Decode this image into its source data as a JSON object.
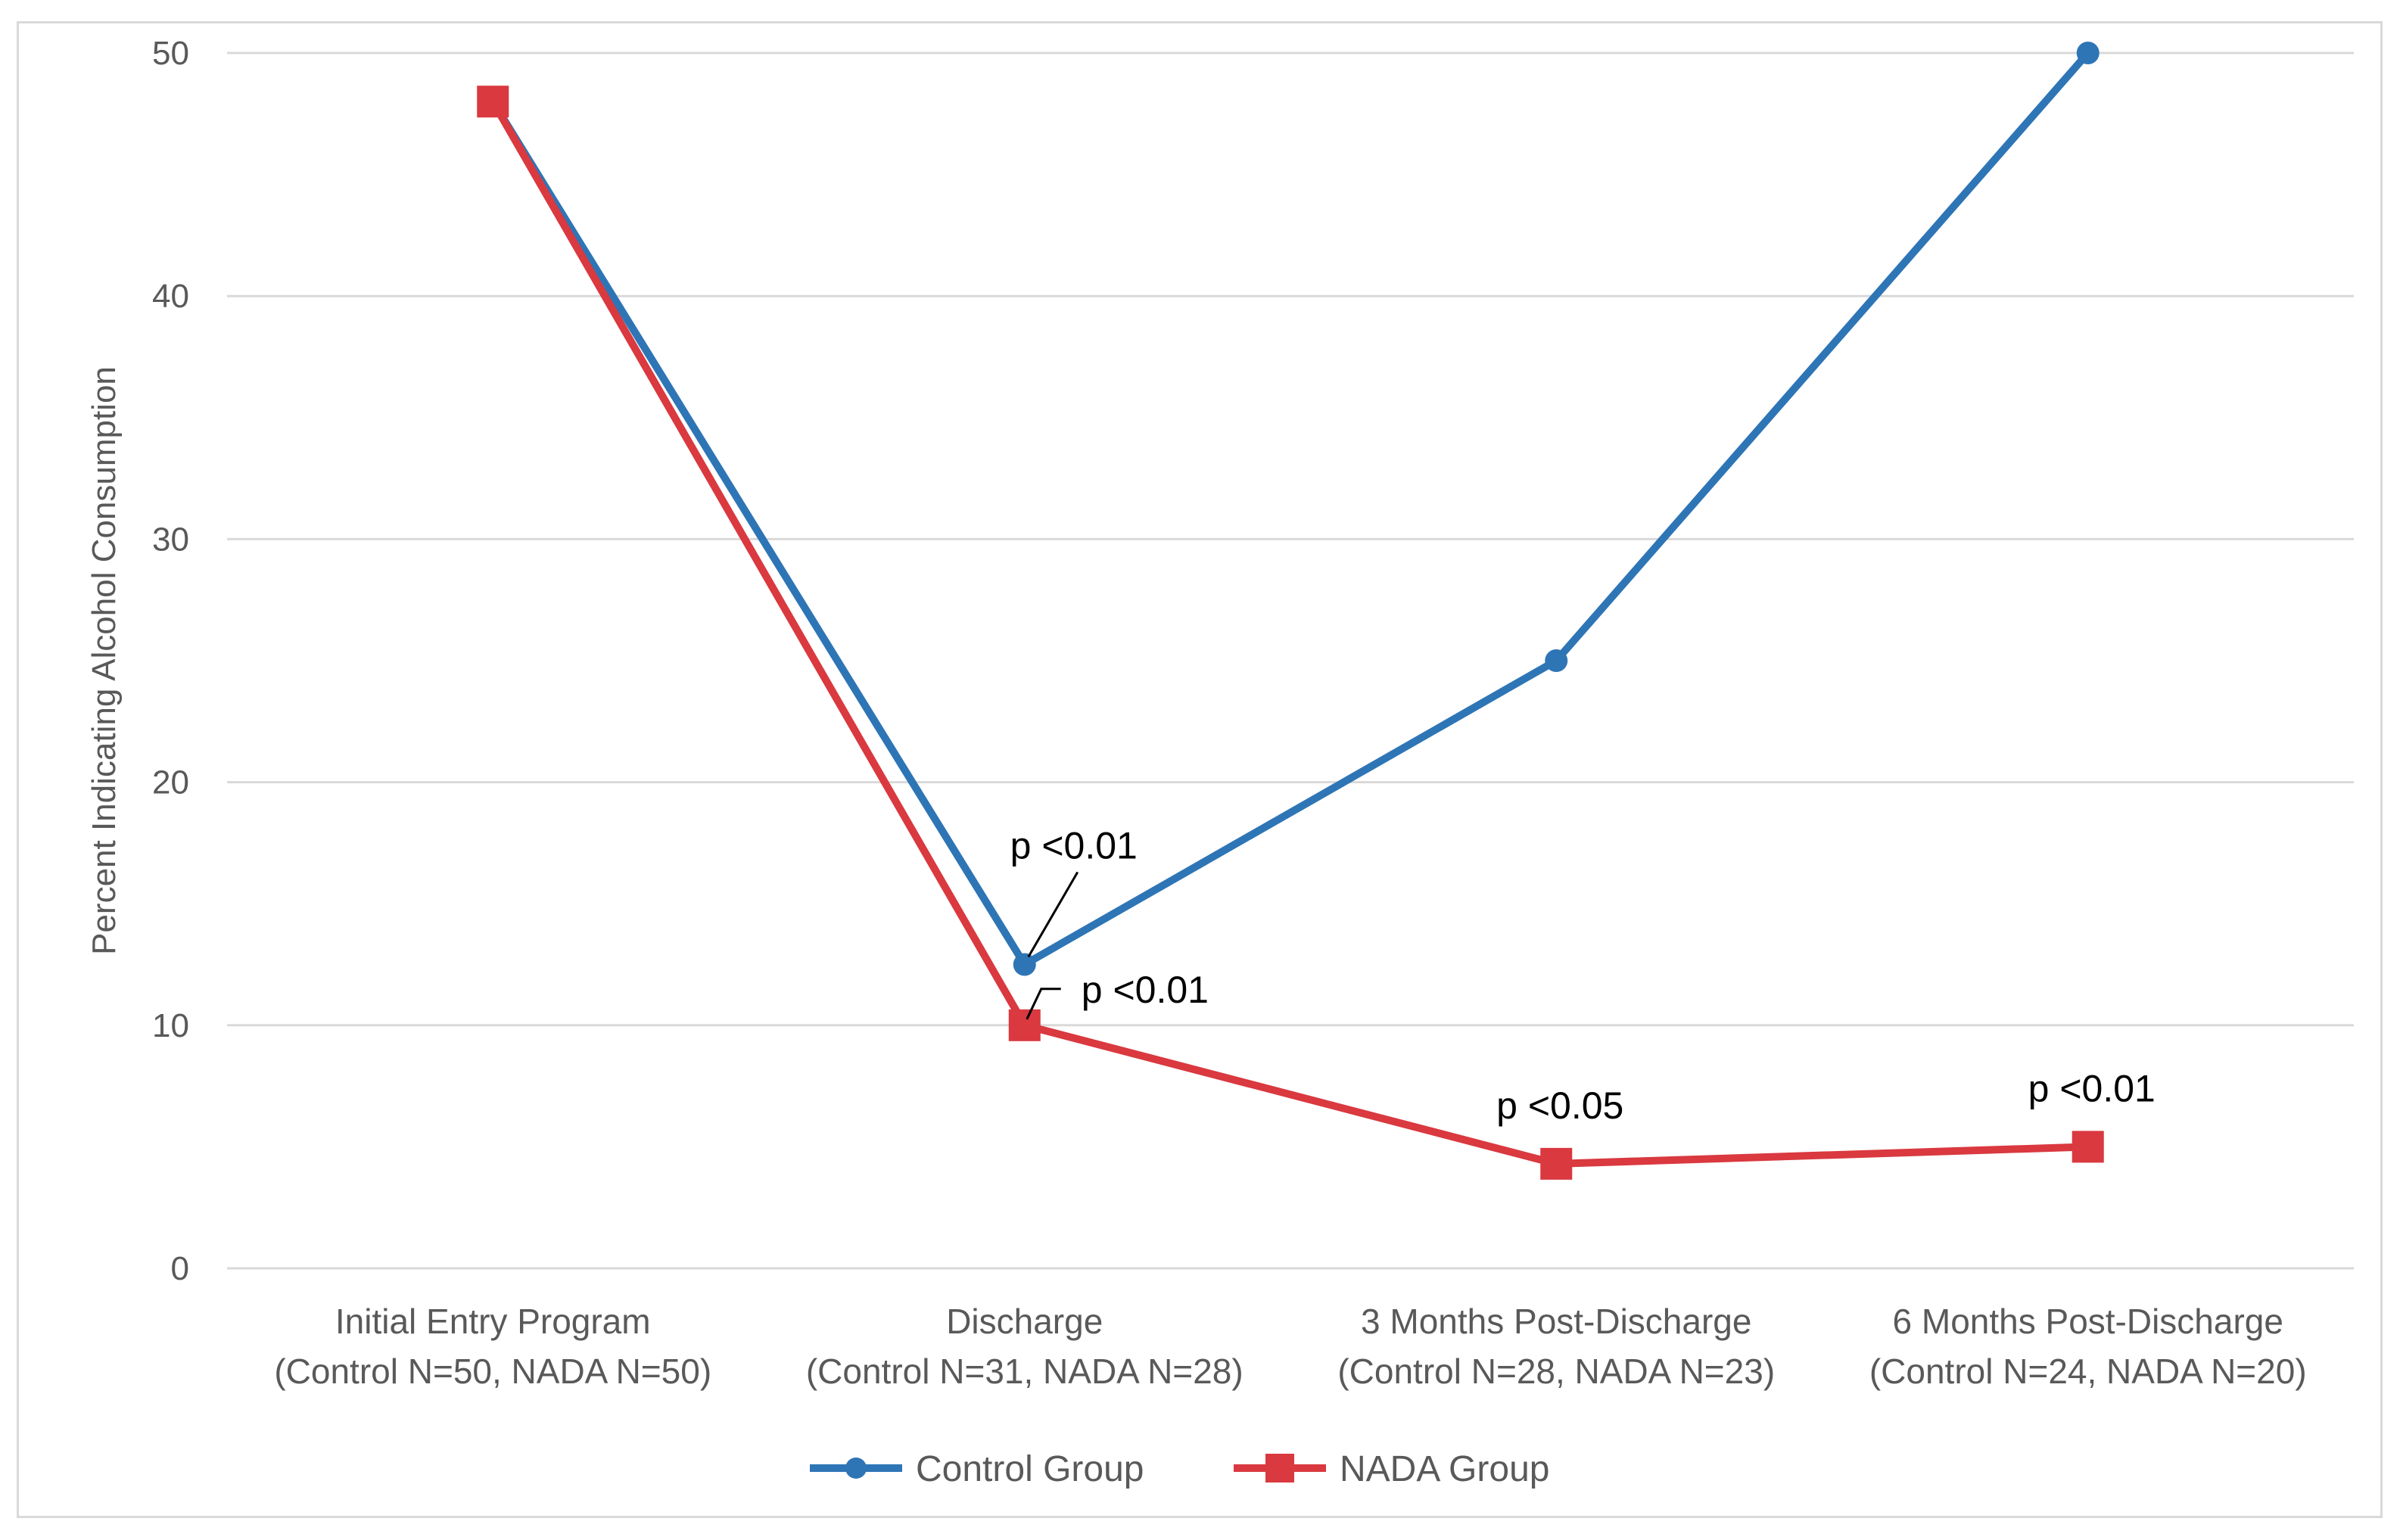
{
  "chart_data": {
    "type": "line",
    "ylabel": "Percent Indicating Alcohol Consumption",
    "ylim": [
      0,
      50
    ],
    "yticks": [
      0,
      10,
      20,
      30,
      40,
      50
    ],
    "grid": true,
    "categories": [
      [
        "Initial Entry Program",
        "(Control N=50,  NADA N=50)"
      ],
      [
        "Discharge",
        "(Control N=31, NADA N=28)"
      ],
      [
        "3 Months Post-Discharge",
        "(Control N=28, NADA N=23)"
      ],
      [
        "6 Months Post-Discharge",
        "(Control N=24, NADA N=20)"
      ]
    ],
    "series": [
      {
        "name": "Control Group",
        "color": "#2e75b6",
        "marker": "circle",
        "values": [
          48,
          12.5,
          25,
          50
        ]
      },
      {
        "name": "NADA Group",
        "color": "#d9393f",
        "marker": "square",
        "values": [
          48,
          10,
          4.3,
          5
        ]
      }
    ],
    "annotations": [
      {
        "text": "p <0.01",
        "series": 0,
        "index": 1,
        "position": "above",
        "leader": true
      },
      {
        "text": "p <0.01",
        "series": 1,
        "index": 1,
        "position": "right",
        "leader": true
      },
      {
        "text": "p <0.05",
        "series": 1,
        "index": 2,
        "position": "above",
        "leader": false
      },
      {
        "text": "p <0.01",
        "series": 1,
        "index": 3,
        "position": "above",
        "leader": false
      }
    ],
    "legend_position": "bottom"
  }
}
